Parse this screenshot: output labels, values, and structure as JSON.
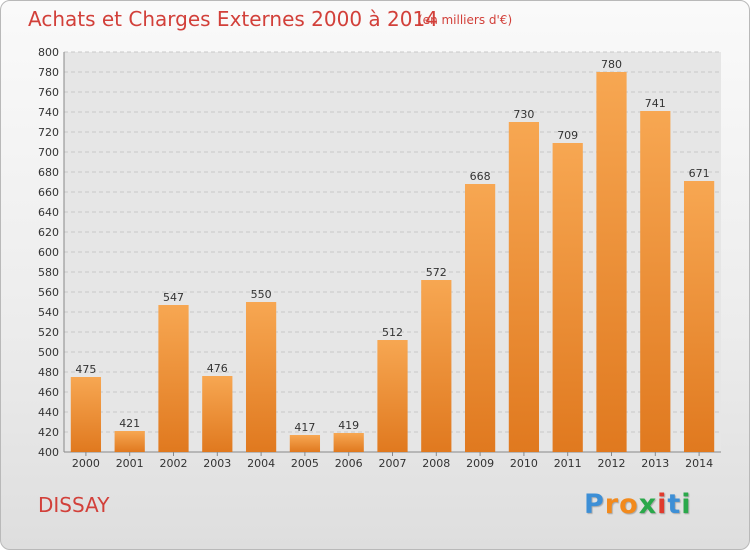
{
  "title": "Achats et Charges Externes 2000 à 2014",
  "subtitle": "(en milliers d'€)",
  "place": "DISSAY",
  "logo": {
    "letters": [
      "P",
      "r",
      "o",
      "x",
      "i",
      "t",
      "i"
    ],
    "colors": [
      "#3d8fd6",
      "#f28a1d",
      "#f28a1d",
      "#2aa84a",
      "#e03b2e",
      "#3d8fd6",
      "#2aa84a"
    ]
  },
  "colors": {
    "bar_top": "#f7a752",
    "bar_bottom": "#e0791f",
    "text": "#333333",
    "accent": "#d2403a"
  },
  "chart_data": {
    "type": "bar",
    "title": "Achats et Charges Externes 2000 à 2014",
    "subtitle": "(en milliers d'€)",
    "xlabel": "",
    "ylabel": "",
    "categories": [
      "2000",
      "2001",
      "2002",
      "2003",
      "2004",
      "2005",
      "2006",
      "2007",
      "2008",
      "2009",
      "2010",
      "2011",
      "2012",
      "2013",
      "2014"
    ],
    "values": [
      475,
      421,
      547,
      476,
      550,
      417,
      419,
      512,
      572,
      668,
      730,
      709,
      780,
      741,
      671
    ],
    "ylim": [
      400,
      800
    ],
    "ytick_step": 20,
    "grid": true,
    "legend": "none"
  }
}
